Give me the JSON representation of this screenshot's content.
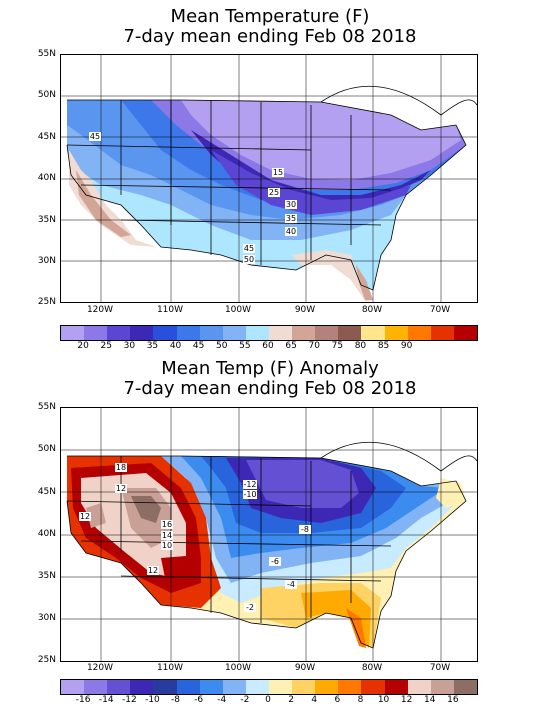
{
  "top": {
    "title_line1": "Mean Temperature (F)",
    "title_line2": "7-day mean ending Feb 08 2018",
    "lat_labels": [
      "55N",
      "50N",
      "45N",
      "40N",
      "35N",
      "30N",
      "25N"
    ],
    "lon_labels": [
      "120W",
      "110W",
      "100W",
      "90W",
      "80W",
      "70W"
    ],
    "contour_labels": [
      "45",
      "15",
      "25",
      "30",
      "35",
      "40",
      "45",
      "50"
    ],
    "colorbar_labels": [
      "20",
      "25",
      "30",
      "35",
      "40",
      "45",
      "50",
      "55",
      "60",
      "65",
      "70",
      "75",
      "80",
      "85",
      "90"
    ],
    "colorbar_colors": [
      "#b4a0f0",
      "#8c78e6",
      "#5a46d2",
      "#3c28b4",
      "#2850dc",
      "#3c78ea",
      "#5a96f0",
      "#82b4f5",
      "#afe6ff",
      "#f0dcd2",
      "#d2a596",
      "#b4827d",
      "#8c5a50",
      "#ffe68c",
      "#ffb400",
      "#ff7800",
      "#e63200",
      "#b40000"
    ]
  },
  "bottom": {
    "title_line1": "Mean Temp (F) Anomaly",
    "title_line2": "7-day mean ending Feb 08 2018",
    "lat_labels": [
      "55N",
      "50N",
      "45N",
      "40N",
      "35N",
      "30N",
      "25N"
    ],
    "lon_labels": [
      "120W",
      "110W",
      "100W",
      "90W",
      "80W",
      "70W"
    ],
    "contour_labels": [
      "18",
      "12",
      "12",
      "16",
      "14",
      "10",
      "12",
      "-12",
      "-10",
      "-8",
      "-6",
      "-4",
      "-2"
    ],
    "colorbar_labels": [
      "-16",
      "-14",
      "-12",
      "-10",
      "-8",
      "-6",
      "-4",
      "-2",
      "0",
      "2",
      "4",
      "6",
      "8",
      "10",
      "12",
      "14",
      "16"
    ],
    "colorbar_colors": [
      "#b4a0f0",
      "#8c78e6",
      "#6450d2",
      "#3c28b4",
      "#283ca0",
      "#2864dc",
      "#3c8cf0",
      "#82b4f5",
      "#c8ebff",
      "#fff0b4",
      "#ffd264",
      "#ffaa00",
      "#ff7800",
      "#e63200",
      "#b40000",
      "#f0d2c8",
      "#c8a096",
      "#8c6e64"
    ]
  }
}
